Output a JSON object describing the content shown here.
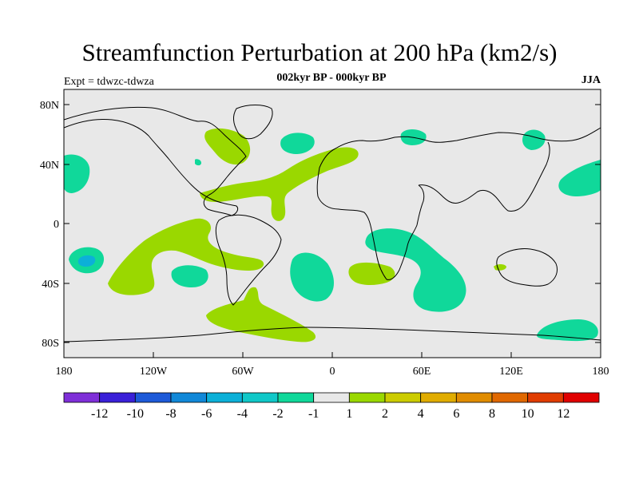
{
  "header": {
    "title": "Streamfunction Perturbation at 200 hPa (km2/s)",
    "subtitle": "002kyr BP - 000kyr BP",
    "left_label": "Expt = tdwzc-tdwza",
    "right_label": "JJA"
  },
  "axes": {
    "lat_ticks": [
      "80N",
      "40N",
      "0",
      "40S",
      "80S"
    ],
    "lon_ticks": [
      "180",
      "120W",
      "60W",
      "0",
      "60E",
      "120E",
      "180"
    ]
  },
  "colorbar": {
    "colors": [
      "#7f2fd8",
      "#3a20d8",
      "#1d5ad8",
      "#1188d8",
      "#0cb0d8",
      "#10c8c8",
      "#10d89a",
      "#e8e8e8",
      "#9ad800",
      "#cccc00",
      "#e0ac00",
      "#e08c00",
      "#e06800",
      "#e03c00",
      "#e00000"
    ],
    "labels": [
      "-12",
      "-10",
      "-8",
      "-6",
      "-4",
      "-2",
      "-1",
      "1",
      "2",
      "4",
      "6",
      "8",
      "10",
      "12"
    ]
  },
  "colors": {
    "ocean_bg": "#e8e8e8",
    "positive_fill": "#9ad800",
    "negative_fill": "#10d89a",
    "negative_core": "#0cb0d8"
  }
}
